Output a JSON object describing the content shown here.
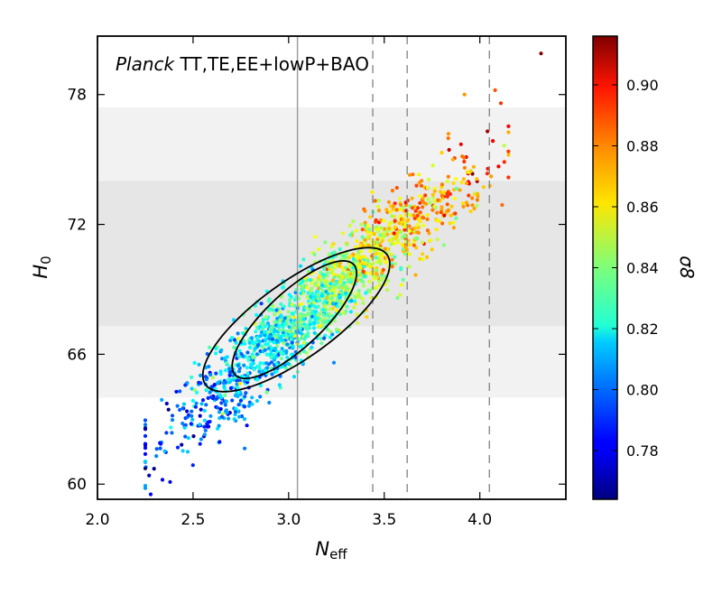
{
  "chart_data": {
    "type": "scatter",
    "annotation": {
      "italic_part": "Planck",
      "rest": " TT,TE,EE+lowP+BAO"
    },
    "xlabel": {
      "main": "N",
      "sub": "eff"
    },
    "ylabel": {
      "main": "H",
      "sub": "0"
    },
    "colorbar_label": "σ8",
    "xlim": [
      2.0,
      4.45
    ],
    "ylim": [
      59.3,
      80.7
    ],
    "x_ticks": [
      2.0,
      2.5,
      3.0,
      3.5,
      4.0
    ],
    "x_tick_labels": [
      "2.0",
      "2.5",
      "3.0",
      "3.5",
      "4.0"
    ],
    "y_ticks": [
      60,
      66,
      72,
      78
    ],
    "y_tick_labels": [
      "60",
      "66",
      "72",
      "78"
    ],
    "colorbar": {
      "range": [
        0.764,
        0.916
      ],
      "ticks": [
        0.78,
        0.8,
        0.82,
        0.84,
        0.86,
        0.88,
        0.9
      ],
      "tick_labels": [
        "0.78",
        "0.80",
        "0.82",
        "0.84",
        "0.86",
        "0.88",
        "0.90"
      ],
      "colormap": "jet"
    },
    "bands": [
      {
        "name": "outer",
        "y_range": [
          64.0,
          77.4
        ],
        "color": "#f2f2f2"
      },
      {
        "name": "inner",
        "y_range": [
          67.3,
          74.0
        ],
        "color": "#e6e6e6"
      }
    ],
    "vertical_lines": [
      {
        "x": 3.046,
        "style": "solid",
        "color": "#9a9a9a"
      },
      {
        "x": 3.44,
        "style": "dashed",
        "color": "#8a8a8a"
      },
      {
        "x": 3.62,
        "style": "dashed",
        "color": "#8a8a8a"
      },
      {
        "x": 4.05,
        "style": "dashed",
        "color": "#8a8a8a"
      }
    ],
    "contours": [
      {
        "name": "68%",
        "center": [
          3.03,
          67.6
        ],
        "semi_major": [
          0.31,
          2.55
        ],
        "semi_minor_width": 0.145
      },
      {
        "name": "95%",
        "center": [
          3.04,
          67.6
        ],
        "semi_major": [
          0.475,
          3.0
        ],
        "semi_minor_width": 0.2
      }
    ],
    "samples": {
      "count": 1700,
      "n_eff_range": [
        2.25,
        4.33
      ],
      "h0_trend": {
        "n_eff": [
          2.5,
          3.05,
          3.5,
          4.0
        ],
        "h0": [
          63.3,
          67.6,
          71.0,
          74.3
        ]
      },
      "sigma8_trend": {
        "n_eff": [
          2.4,
          3.0,
          3.5,
          3.9
        ],
        "sigma8": [
          0.795,
          0.825,
          0.86,
          0.875
        ]
      },
      "outliers": [
        {
          "n_eff": 4.32,
          "h0": 79.9,
          "sigma8": 0.915
        },
        {
          "n_eff": 4.08,
          "h0": 78.2,
          "sigma8": 0.885
        },
        {
          "n_eff": 4.11,
          "h0": 77.6,
          "sigma8": 0.89
        },
        {
          "n_eff": 3.92,
          "h0": 78.0,
          "sigma8": 0.875
        },
        {
          "n_eff": 4.04,
          "h0": 76.3,
          "sigma8": 0.91
        },
        {
          "n_eff": 2.27,
          "h0": 60.4,
          "sigma8": 0.775
        },
        {
          "n_eff": 2.34,
          "h0": 60.2,
          "sigma8": 0.78
        },
        {
          "n_eff": 2.38,
          "h0": 60.1,
          "sigma8": 0.78
        }
      ]
    }
  }
}
